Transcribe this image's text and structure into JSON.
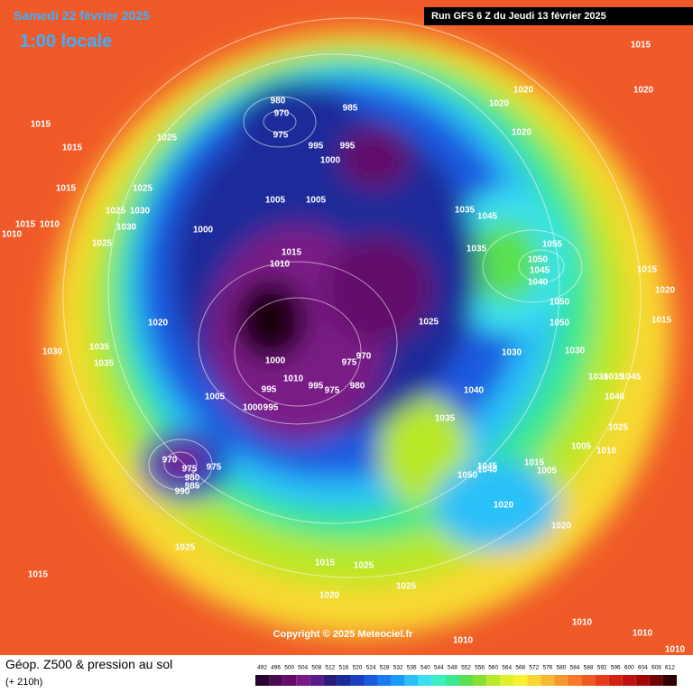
{
  "header": {
    "date": "Samedi 22 février 2025",
    "time": "1:00 locale",
    "run": "Run GFS 6 Z du Jeudi 13 février 2025",
    "copyright": "Copyright © 2025 Meteociel.fr"
  },
  "footer": {
    "title": "Géop. Z500 & pression au sol",
    "lead": "(+ 210h)"
  },
  "scale": {
    "ticks": [
      492,
      496,
      500,
      504,
      508,
      512,
      516,
      520,
      524,
      528,
      532,
      536,
      540,
      544,
      548,
      552,
      556,
      560,
      564,
      568,
      572,
      576,
      580,
      584,
      588,
      592,
      596,
      600,
      604,
      608,
      612
    ],
    "colors": [
      "#2a0030",
      "#4a0a50",
      "#640a6a",
      "#7a1a86",
      "#5a1a8a",
      "#2a1a7a",
      "#1a2a9a",
      "#1a3fc0",
      "#1a5ae0",
      "#1a7af0",
      "#1a9af8",
      "#2ac0f8",
      "#3ae0f0",
      "#3af0c0",
      "#3ae890",
      "#5ae050",
      "#8ae030",
      "#b8e828",
      "#e0f028",
      "#f8f030",
      "#f8d830",
      "#f8b830",
      "#f89830",
      "#f87a28",
      "#f05a20",
      "#e83a18",
      "#d82010",
      "#c01010",
      "#a00808",
      "#700404",
      "#300000"
    ]
  },
  "isobar_labels": [
    1015,
    1020,
    1020,
    1020,
    1020,
    980,
    970,
    985,
    975,
    995,
    995,
    1000,
    1015,
    1015,
    1025,
    1015,
    1025,
    1025,
    1030,
    1015,
    1010,
    1010,
    1030,
    1025,
    1000,
    1005,
    1005,
    1015,
    1010,
    1035,
    1045,
    1035,
    1055,
    1050,
    1045,
    1040,
    1015,
    1020,
    1050,
    1050,
    1015,
    1025,
    1020,
    1030,
    1035,
    1035,
    975,
    970,
    1000,
    980,
    975,
    995,
    1010,
    995,
    1005,
    1000,
    995,
    1030,
    1030,
    1040,
    1030,
    1035,
    1045,
    1040,
    1025,
    1005,
    1010,
    1035,
    970,
    975,
    975,
    980,
    985,
    990,
    1050,
    1045,
    1040,
    1015,
    1005,
    1020,
    1020,
    1025,
    1015,
    1025,
    1020,
    1025,
    1015,
    1010,
    1010,
    1010,
    1010
  ]
}
